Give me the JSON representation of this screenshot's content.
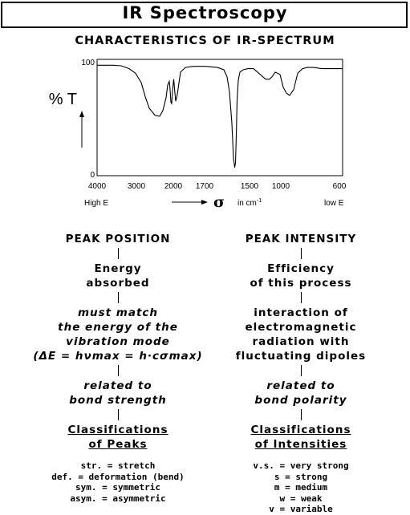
{
  "title": "IR Spectroscopy",
  "subtitle": "CHARACTERISTICS OF IR-SPECTRUM",
  "chart_data": {
    "type": "line",
    "ylabel": "% T",
    "ytick_labels": [
      "100",
      "0"
    ],
    "ylim": [
      0,
      100
    ],
    "xtick_labels": [
      "4000",
      "3000",
      "2000",
      "1700",
      "1500",
      "1000",
      "600"
    ],
    "xunit_symbol": "σ",
    "xunit_text": "in cm",
    "xunit_exp": "-1",
    "x_left_note": "High E",
    "x_right_note": "low E",
    "grid": false,
    "series": [
      {
        "x": [
          0,
          10,
          20,
          30,
          40,
          48,
          55,
          60,
          65,
          72,
          78,
          82,
          86,
          88,
          90,
          91,
          92,
          93,
          94,
          95.5,
          97,
          98,
          100,
          104,
          110,
          120,
          135,
          150,
          158,
          162,
          165,
          168,
          170,
          171.5,
          172.5,
          173.5,
          174.5,
          176,
          178,
          182,
          188,
          195,
          200,
          205,
          210,
          215,
          218,
          222,
          228,
          232,
          236,
          240,
          245,
          250,
          256,
          262,
          270,
          280,
          290,
          300,
          306
        ],
        "y": [
          95,
          95,
          95,
          94.5,
          92,
          88,
          80,
          68,
          58,
          52,
          51,
          56,
          67,
          78,
          81,
          74,
          63,
          62,
          73,
          83,
          71,
          64,
          70,
          89,
          93,
          94,
          94,
          93,
          91,
          85,
          72,
          45,
          15,
          7,
          11,
          35,
          65,
          82,
          89,
          91,
          92,
          92,
          89,
          86,
          83,
          83,
          85,
          89,
          87,
          76,
          71,
          69,
          74,
          88,
          92,
          93,
          93,
          92,
          92,
          92,
          92
        ]
      }
    ]
  },
  "left_column": {
    "heading": "PEAK POSITION",
    "energy": [
      "Energy",
      "absorbed"
    ],
    "match": [
      "must match",
      "the energy of the",
      "vibration mode"
    ],
    "equation": "(ΔE = hνmax = h·cσmax)",
    "related": [
      "related to",
      "bond strength"
    ],
    "classification": [
      "Classifications",
      "of Peaks"
    ],
    "legend": [
      "str. = stretch",
      "def. = deformation (bend)",
      "sym. = symmetric",
      "asym. = asymmetric"
    ]
  },
  "right_column": {
    "heading": "PEAK INTENSITY",
    "efficiency": [
      "Efficiency",
      "of this process"
    ],
    "interaction": [
      "interaction of",
      "electromagnetic",
      "radiation with",
      "fluctuating dipoles"
    ],
    "related": [
      "related to",
      "bond polarity"
    ],
    "classification": [
      "Classifications",
      "of Intensities"
    ],
    "legend": [
      "v.s. = very strong",
      "s = strong",
      "m = medium",
      "w = weak",
      "v = variable"
    ]
  }
}
